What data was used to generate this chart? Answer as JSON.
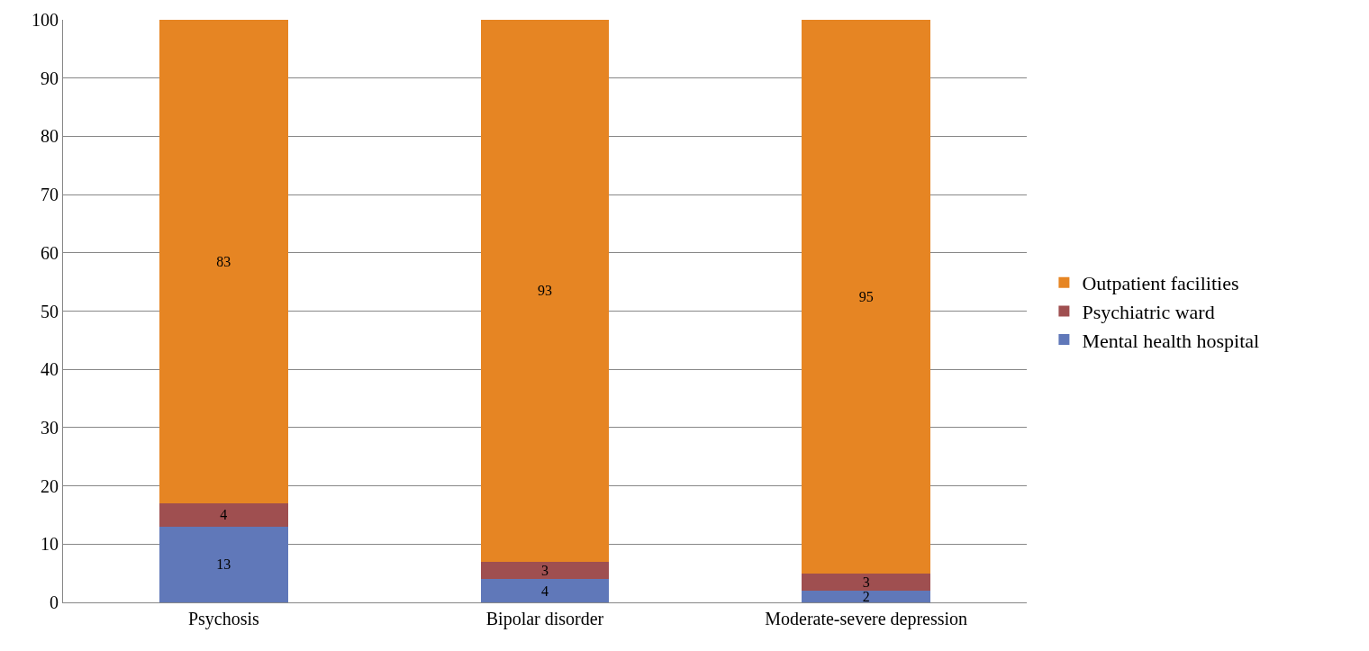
{
  "chart_data": {
    "type": "bar",
    "stacked": true,
    "categories": [
      "Psychosis",
      "Bipolar disorder",
      "Moderate-severe depression"
    ],
    "series": [
      {
        "name": "Mental health hospital",
        "color": "#6078b9",
        "values": [
          13,
          4,
          2
        ]
      },
      {
        "name": "Psychiatric ward",
        "color": "#9f4f50",
        "values": [
          4,
          3,
          3
        ]
      },
      {
        "name": "Outpatient facilities",
        "color": "#e68523",
        "values": [
          83,
          93,
          95
        ]
      }
    ],
    "ylim": [
      0,
      100
    ],
    "yticks": [
      0,
      10,
      20,
      30,
      40,
      50,
      60,
      70,
      80,
      90,
      100
    ],
    "grid": "y",
    "legend": "right",
    "data_labels": true
  }
}
